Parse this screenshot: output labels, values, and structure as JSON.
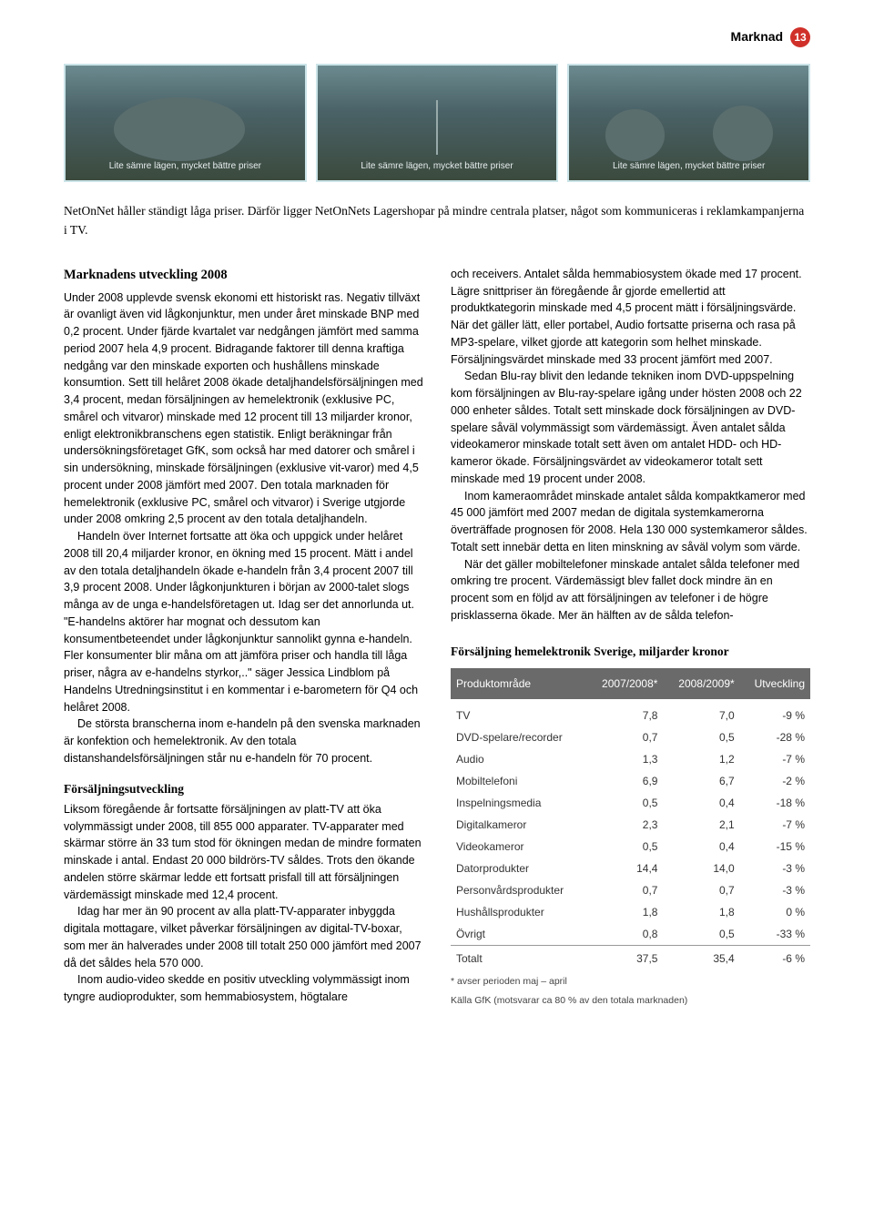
{
  "header": {
    "section": "Marknad",
    "page_number": "13"
  },
  "filmstrip": {
    "caption": "Lite sämre lägen, mycket bättre priser"
  },
  "intro": "NetOnNet håller ständigt låga priser. Därför ligger NetOnNets Lagershopar på mindre centrala platser, något som kommuniceras i reklamkampanjerna i TV.",
  "left": {
    "heading1": "Marknadens utveckling 2008",
    "p1": "Under 2008 upplevde svensk ekonomi ett historiskt ras. Negativ tillväxt är ovanligt även vid lågkonjunktur, men under året minskade BNP med 0,2 procent. Under fjärde kvartalet var nedgången jämfört med samma period 2007 hela 4,9 procent. Bidragande faktorer till denna kraftiga nedgång var den minskade exporten och hushållens minskade konsumtion. Sett till helåret 2008 ökade detaljhandelsförsäljningen med 3,4 procent, medan försäljningen av hemelektronik (exklusive PC, smårel och vitvaror) minskade med 12 procent till 13 miljarder kronor, enligt elektronikbranschens egen statistik. Enligt beräkningar från undersökningsföretaget GfK, som också har med datorer och smårel i sin undersökning, minskade försäljningen (exklusive vit-varor) med 4,5 procent under 2008 jämfört med 2007. Den totala marknaden för hemelektronik (exklusive PC, smårel och vitvaror) i Sverige utgjorde under 2008 omkring 2,5 procent av den totala detaljhandeln.",
    "p2": "Handeln över Internet fortsatte att öka och uppgick under helåret 2008 till 20,4 miljarder kronor, en ökning med 15 procent. Mätt i andel av den totala detaljhandeln ökade e-handeln från 3,4 procent 2007 till 3,9 procent 2008. Under lågkonjunkturen i början av 2000-talet slogs många av de unga e-handelsföretagen ut. Idag ser det annorlunda ut. \"E-handelns aktörer har mognat och dessutom kan konsumentbeteendet under lågkonjunktur sannolikt gynna e-handeln. Fler konsumenter blir måna om att jämföra priser och handla till låga priser, några av e-handelns styrkor,..\" säger Jessica Lindblom på Handelns Utredningsinstitut i en kommentar i e-barometern för Q4 och helåret 2008.",
    "p3": "De största branscherna inom e-handeln på den svenska marknaden är konfektion och hemelektronik. Av den totala distanshandelsförsäljningen står nu e-handeln för 70 procent.",
    "heading2": "Försäljningsutveckling",
    "p4": "Liksom föregående år fortsatte försäljningen av platt-TV att öka volymmässigt under 2008, till 855 000 apparater. TV-apparater med skärmar större än 33 tum stod för ökningen medan de mindre formaten minskade i antal. Endast 20 000 bildrörs-TV såldes. Trots den ökande andelen större skärmar ledde ett fortsatt prisfall till att försäljningen värdemässigt minskade med 12,4 procent.",
    "p5": "Idag har mer än 90 procent av alla platt-TV-apparater inbyggda digitala mottagare, vilket påverkar försäljningen av digital-TV-boxar, som mer än halverades under 2008 till totalt 250 000 jämfört med 2007 då det såldes hela 570 000.",
    "p6": "Inom audio-video skedde en positiv utveckling volymmässigt inom tyngre audioprodukter, som hemmabiosystem, högtalare"
  },
  "right": {
    "p1": "och receivers. Antalet sålda hemmabiosystem ökade med 17 procent. Lägre snittpriser än föregående år gjorde emellertid att produktkategorin minskade med 4,5 procent mätt i försäljningsvärde. När det gäller lätt, eller portabel, Audio fortsatte priserna och rasa på MP3-spelare, vilket gjorde att kategorin som helhet minskade. Försäljningsvärdet minskade med 33 procent jämfört med 2007.",
    "p2": "Sedan Blu-ray blivit den ledande tekniken inom DVD-uppspelning kom försäljningen av Blu-ray-spelare igång under hösten 2008 och 22 000 enheter såldes. Totalt sett minskade dock försäljningen av DVD-spelare såväl volymmässigt som värdemässigt. Även antalet sålda videokameror minskade totalt sett även om antalet HDD- och HD-kameror ökade. Försäljningsvärdet av videokameror totalt sett minskade med 19 procent under 2008.",
    "p3": "Inom kameraområdet minskade antalet sålda kompaktkameror med 45 000 jämfört med 2007 medan de digitala systemkamerorna överträffade prognosen för 2008. Hela 130 000 systemkameror såldes. Totalt sett innebär detta en liten minskning av såväl volym som värde.",
    "p4": "När det gäller mobiltelefoner minskade antalet sålda telefoner med omkring tre procent. Värdemässigt blev fallet dock mindre än en procent som en följd av att försäljningen av telefoner i de högre prisklasserna ökade. Mer än hälften av de sålda telefon-"
  },
  "table": {
    "title": "Försäljning hemelektronik Sverige, miljarder kronor",
    "columns": [
      "Produktområde",
      "2007/2008*",
      "2008/2009*",
      "Utveckling"
    ],
    "rows": [
      [
        "TV",
        "7,8",
        "7,0",
        "-9 %"
      ],
      [
        "DVD-spelare/recorder",
        "0,7",
        "0,5",
        "-28 %"
      ],
      [
        "Audio",
        "1,3",
        "1,2",
        "-7 %"
      ],
      [
        "Mobiltelefoni",
        "6,9",
        "6,7",
        "-2 %"
      ],
      [
        "Inspelningsmedia",
        "0,5",
        "0,4",
        "-18 %"
      ],
      [
        "Digitalkameror",
        "2,3",
        "2,1",
        "-7 %"
      ],
      [
        "Videokameror",
        "0,5",
        "0,4",
        "-15 %"
      ],
      [
        "Datorprodukter",
        "14,4",
        "14,0",
        "-3 %"
      ],
      [
        "Personvårdsprodukter",
        "0,7",
        "0,7",
        "-3 %"
      ],
      [
        "Hushållsprodukter",
        "1,8",
        "1,8",
        "0 %"
      ],
      [
        "Övrigt",
        "0,8",
        "0,5",
        "-33 %"
      ]
    ],
    "total": [
      "Totalt",
      "37,5",
      "35,4",
      "-6 %"
    ],
    "footnote1": "* avser perioden maj – april",
    "footnote2": "Källa GfK (motsvarar ca 80 % av den totala marknaden)"
  }
}
